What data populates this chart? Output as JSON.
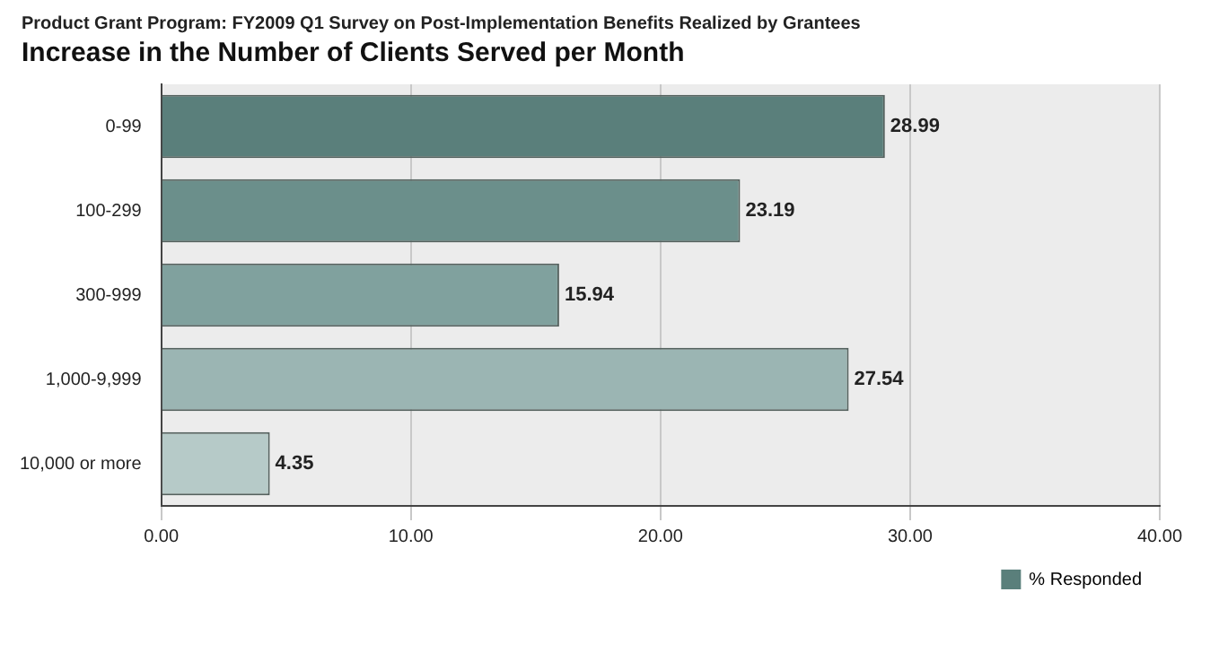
{
  "chart_data": {
    "type": "bar",
    "orientation": "horizontal",
    "subtitle": "Product Grant Program: FY2009 Q1 Survey on Post-Implementation Benefits Realized by Grantees",
    "title": "Increase in the Number of Clients Served per Month",
    "categories": [
      "0-99",
      "100-299",
      "300-999",
      "1,000-9,999",
      "10,000 or more"
    ],
    "series": [
      {
        "name": "% Responded",
        "color": "#5a7f7b",
        "colors": [
          "#5a7f7b",
          "#6b8f8b",
          "#80a19e",
          "#9bb5b3",
          "#b6cac8"
        ],
        "values": [
          28.99,
          23.19,
          15.94,
          27.54,
          4.35
        ]
      }
    ],
    "data_labels": true,
    "xlim": [
      0,
      40
    ],
    "xticks": [
      {
        "value": 0,
        "label": "0.00"
      },
      {
        "value": 10,
        "label": "10.00"
      },
      {
        "value": 20,
        "label": "20.00"
      },
      {
        "value": 30,
        "label": "30.00"
      },
      {
        "value": 40,
        "label": "40.00"
      }
    ],
    "grid": "x",
    "legend": "bottom right"
  }
}
